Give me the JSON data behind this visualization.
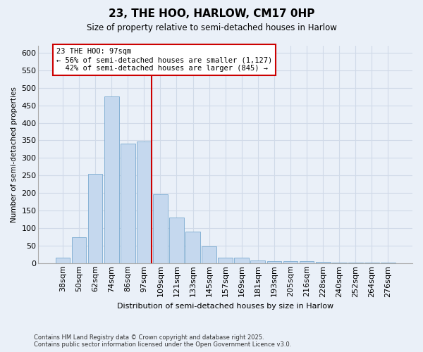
{
  "title": "23, THE HOO, HARLOW, CM17 0HP",
  "subtitle": "Size of property relative to semi-detached houses in Harlow",
  "xlabel": "Distribution of semi-detached houses by size in Harlow",
  "ylabel": "Number of semi-detached properties",
  "categories": [
    "38sqm",
    "50sqm",
    "62sqm",
    "74sqm",
    "86sqm",
    "97sqm",
    "109sqm",
    "121sqm",
    "133sqm",
    "145sqm",
    "157sqm",
    "169sqm",
    "181sqm",
    "193sqm",
    "205sqm",
    "216sqm",
    "228sqm",
    "240sqm",
    "252sqm",
    "264sqm",
    "276sqm"
  ],
  "heights": [
    15,
    73,
    255,
    475,
    340,
    347,
    196,
    130,
    90,
    47,
    15,
    15,
    8,
    6,
    5,
    5,
    3,
    2,
    2,
    2,
    2
  ],
  "bar_color": "#c5d8ee",
  "bar_edge_color": "#7aaad0",
  "grid_color": "#d0dae8",
  "background_color": "#eaf0f8",
  "vline_index": 5,
  "property_label": "23 THE HOO: 97sqm",
  "pct_smaller": 56,
  "count_smaller": 1127,
  "pct_larger": 42,
  "count_larger": 845,
  "vline_color": "#cc0000",
  "annotation_box_edgecolor": "#cc0000",
  "footnote_line1": "Contains HM Land Registry data © Crown copyright and database right 2025.",
  "footnote_line2": "Contains public sector information licensed under the Open Government Licence v3.0.",
  "ylim": [
    0,
    620
  ],
  "yticks": [
    0,
    50,
    100,
    150,
    200,
    250,
    300,
    350,
    400,
    450,
    500,
    550,
    600
  ]
}
